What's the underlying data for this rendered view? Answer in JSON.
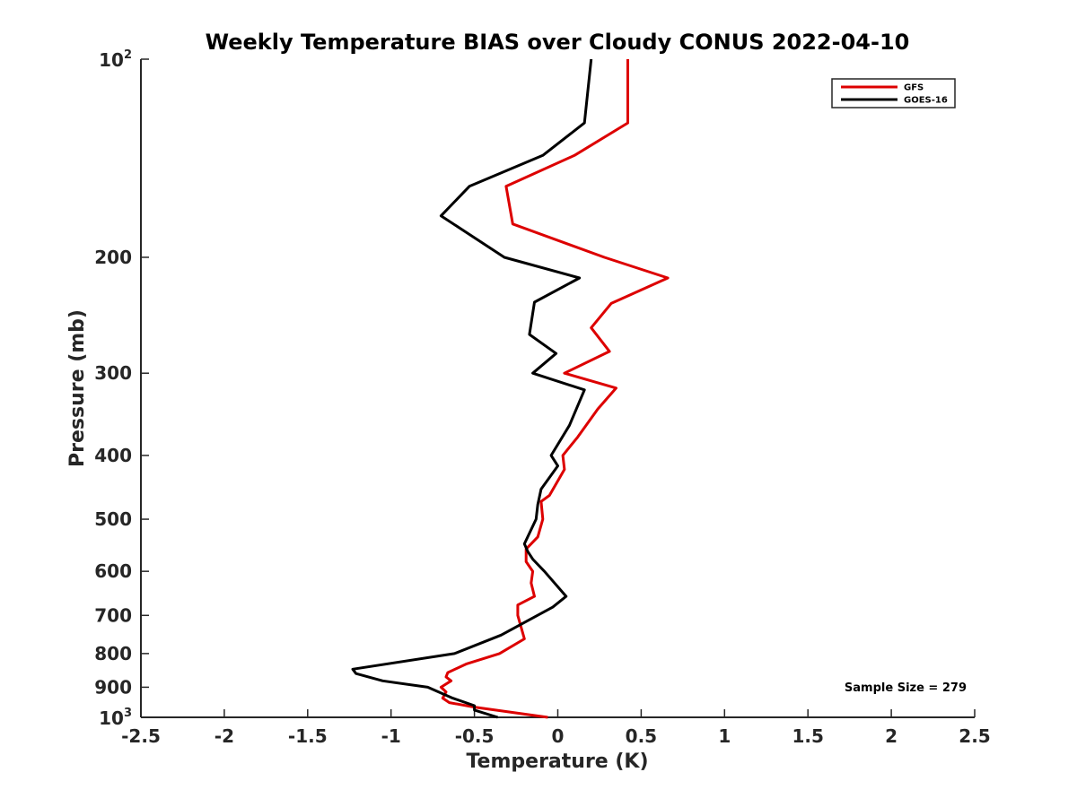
{
  "chart_data": {
    "type": "line",
    "title": "Weekly Temperature BIAS over Cloudy CONUS 2022-04-10",
    "xlabel": "Temperature (K)",
    "ylabel": "Pressure (mb)",
    "xlim": [
      -2.5,
      2.5
    ],
    "ylim": [
      100,
      1000
    ],
    "y_scale": "log",
    "y_reversed": true,
    "grid": false,
    "legend_position": "top-right",
    "x_ticks": [
      -2.5,
      -2,
      -1.5,
      -1,
      -0.5,
      0,
      0.5,
      1,
      1.5,
      2,
      2.5
    ],
    "x_tick_labels": [
      "-2.5",
      "-2",
      "-1.5",
      "-1",
      "-0.5",
      "0",
      "0.5",
      "1",
      "1.5",
      "2",
      "2.5"
    ],
    "y_ticks": [
      200,
      300,
      400,
      500,
      600,
      700,
      800,
      900
    ],
    "y_tick_labels": [
      "200",
      "300",
      "400",
      "500",
      "600",
      "700",
      "800",
      "900"
    ],
    "y_end_ticks": [
      {
        "value": 100,
        "base": "10",
        "exponent": "2"
      },
      {
        "value": 1000,
        "base": "10",
        "exponent": "3"
      }
    ],
    "annotation": "Sample Size = 279",
    "series": [
      {
        "name": "GFS",
        "color": "#dd0000",
        "points": [
          {
            "x": 0.42,
            "y": 100
          },
          {
            "x": 0.42,
            "y": 125
          },
          {
            "x": 0.1,
            "y": 140
          },
          {
            "x": -0.31,
            "y": 156
          },
          {
            "x": -0.27,
            "y": 178
          },
          {
            "x": 0.28,
            "y": 200
          },
          {
            "x": 0.66,
            "y": 215
          },
          {
            "x": 0.32,
            "y": 235
          },
          {
            "x": 0.2,
            "y": 256
          },
          {
            "x": 0.31,
            "y": 278
          },
          {
            "x": 0.04,
            "y": 300
          },
          {
            "x": 0.35,
            "y": 316
          },
          {
            "x": 0.24,
            "y": 340
          },
          {
            "x": 0.12,
            "y": 375
          },
          {
            "x": 0.03,
            "y": 400
          },
          {
            "x": 0.04,
            "y": 420
          },
          {
            "x": -0.05,
            "y": 460
          },
          {
            "x": -0.1,
            "y": 470
          },
          {
            "x": -0.09,
            "y": 500
          },
          {
            "x": -0.12,
            "y": 532
          },
          {
            "x": -0.19,
            "y": 555
          },
          {
            "x": -0.19,
            "y": 580
          },
          {
            "x": -0.15,
            "y": 600
          },
          {
            "x": -0.16,
            "y": 625
          },
          {
            "x": -0.14,
            "y": 655
          },
          {
            "x": -0.24,
            "y": 675
          },
          {
            "x": -0.24,
            "y": 700
          },
          {
            "x": -0.2,
            "y": 760
          },
          {
            "x": -0.35,
            "y": 800
          },
          {
            "x": -0.55,
            "y": 830
          },
          {
            "x": -0.66,
            "y": 855
          },
          {
            "x": -0.67,
            "y": 868
          },
          {
            "x": -0.64,
            "y": 880
          },
          {
            "x": -0.7,
            "y": 900
          },
          {
            "x": -0.67,
            "y": 915
          },
          {
            "x": -0.69,
            "y": 935
          },
          {
            "x": -0.65,
            "y": 950
          },
          {
            "x": -0.5,
            "y": 965
          },
          {
            "x": -0.06,
            "y": 1000
          }
        ]
      },
      {
        "name": "GOES-16",
        "color": "#000000",
        "points": [
          {
            "x": 0.2,
            "y": 100
          },
          {
            "x": 0.16,
            "y": 125
          },
          {
            "x": -0.09,
            "y": 140
          },
          {
            "x": -0.53,
            "y": 156
          },
          {
            "x": -0.7,
            "y": 173
          },
          {
            "x": -0.32,
            "y": 200
          },
          {
            "x": 0.13,
            "y": 215
          },
          {
            "x": -0.14,
            "y": 234
          },
          {
            "x": -0.17,
            "y": 262
          },
          {
            "x": -0.01,
            "y": 280
          },
          {
            "x": -0.15,
            "y": 300
          },
          {
            "x": 0.16,
            "y": 318
          },
          {
            "x": 0.07,
            "y": 360
          },
          {
            "x": -0.04,
            "y": 400
          },
          {
            "x": 0.0,
            "y": 415
          },
          {
            "x": -0.1,
            "y": 450
          },
          {
            "x": -0.12,
            "y": 475
          },
          {
            "x": -0.13,
            "y": 500
          },
          {
            "x": -0.2,
            "y": 545
          },
          {
            "x": -0.18,
            "y": 560
          },
          {
            "x": -0.15,
            "y": 575
          },
          {
            "x": -0.08,
            "y": 600
          },
          {
            "x": 0.05,
            "y": 655
          },
          {
            "x": -0.03,
            "y": 680
          },
          {
            "x": -0.34,
            "y": 750
          },
          {
            "x": -0.62,
            "y": 800
          },
          {
            "x": -1.23,
            "y": 845
          },
          {
            "x": -1.21,
            "y": 858
          },
          {
            "x": -1.05,
            "y": 880
          },
          {
            "x": -0.78,
            "y": 900
          },
          {
            "x": -0.63,
            "y": 935
          },
          {
            "x": -0.5,
            "y": 960
          },
          {
            "x": -0.5,
            "y": 975
          },
          {
            "x": -0.36,
            "y": 1000
          }
        ]
      }
    ]
  }
}
